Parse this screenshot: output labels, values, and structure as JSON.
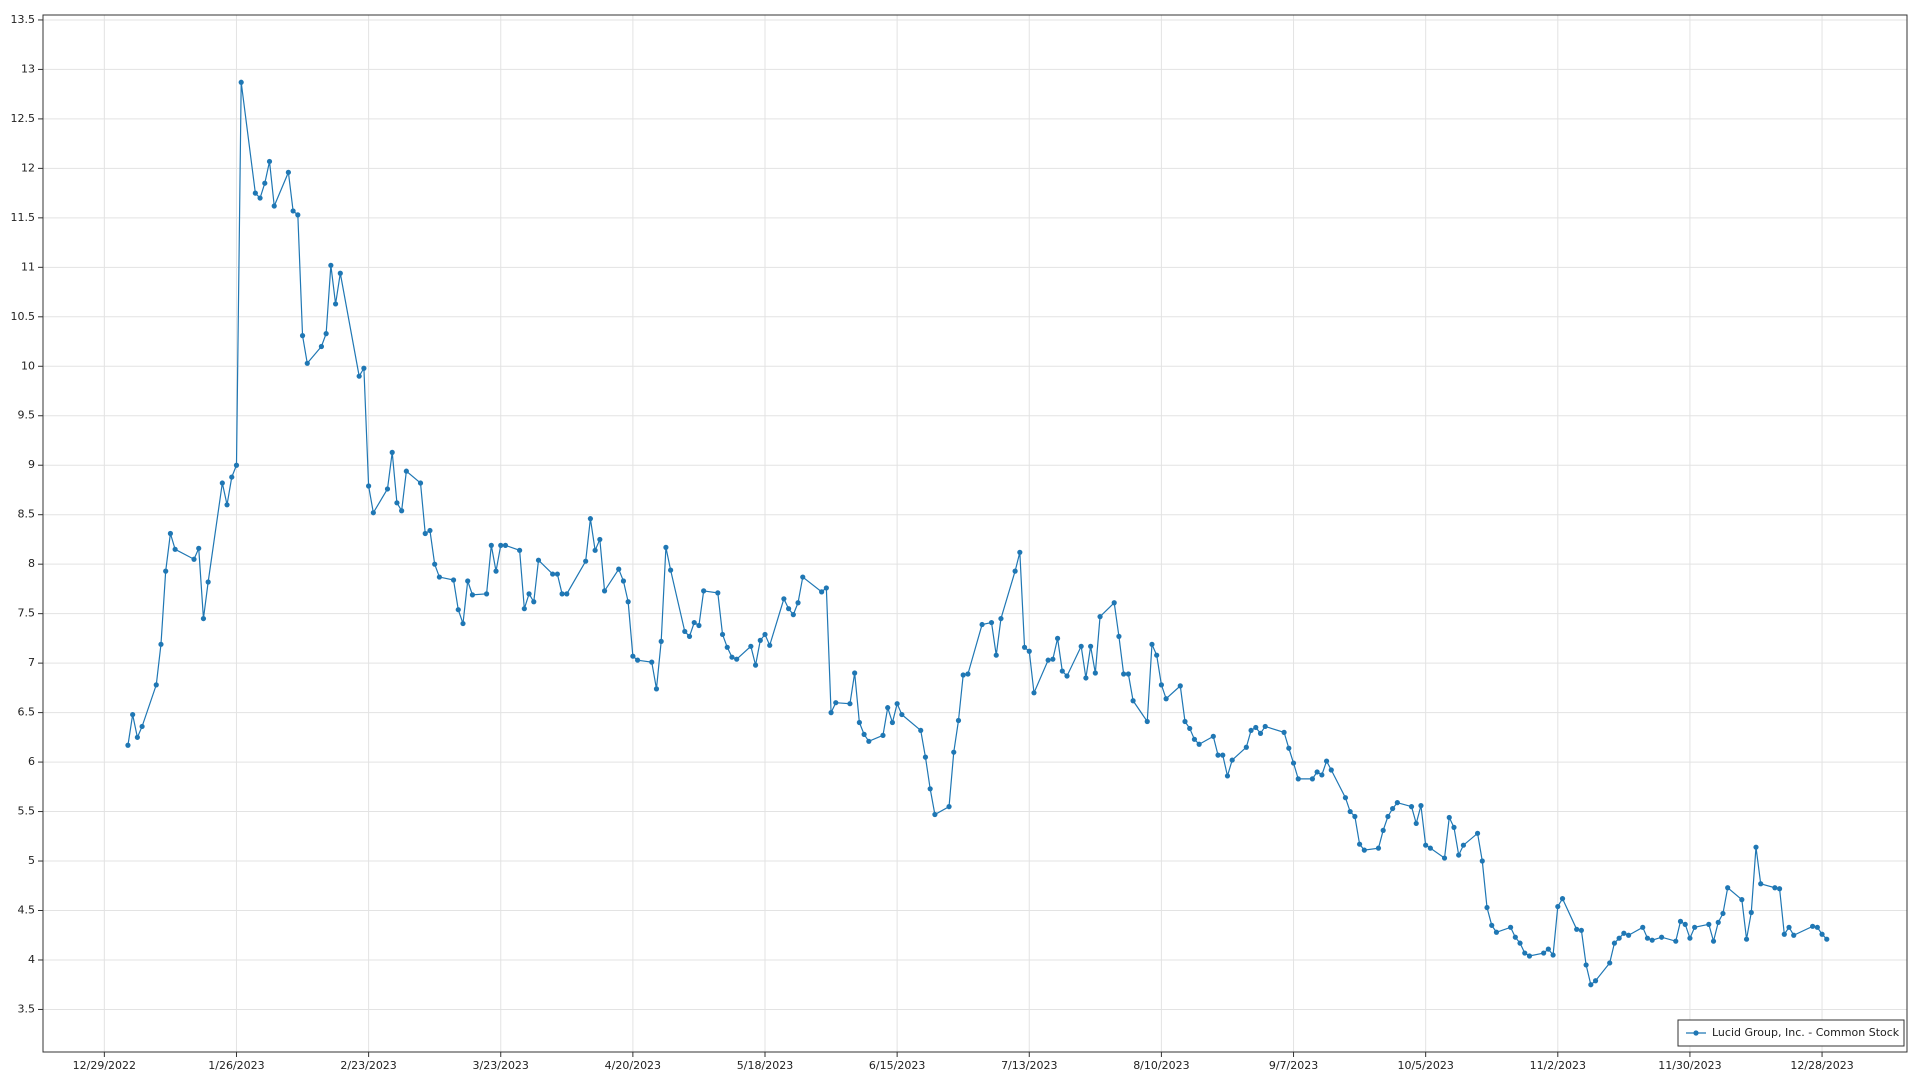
{
  "chart_data": {
    "type": "line",
    "grid": true,
    "legend": "lower right",
    "x_format": "date",
    "xlim": [
      "12/16/2022",
      "1/15/2024"
    ],
    "xticks": [
      "12/29/2022",
      "1/26/2023",
      "2/23/2023",
      "3/23/2023",
      "4/20/2023",
      "5/18/2023",
      "6/15/2023",
      "7/13/2023",
      "8/10/2023",
      "9/7/2023",
      "10/5/2023",
      "11/2/2023",
      "11/30/2023",
      "12/28/2023"
    ],
    "ylim": [
      3.07,
      13.55
    ],
    "yticks": [
      3.5,
      4,
      4.5,
      5,
      5.5,
      6,
      6.5,
      7,
      7.5,
      8,
      8.5,
      9,
      9.5,
      10,
      10.5,
      11,
      11.5,
      12,
      12.5,
      13,
      13.5
    ],
    "x": [
      "1/3/2023",
      "1/4/2023",
      "1/5/2023",
      "1/6/2023",
      "1/9/2023",
      "1/10/2023",
      "1/11/2023",
      "1/12/2023",
      "1/13/2023",
      "1/17/2023",
      "1/18/2023",
      "1/19/2023",
      "1/20/2023",
      "1/23/2023",
      "1/24/2023",
      "1/25/2023",
      "1/26/2023",
      "1/27/2023",
      "1/30/2023",
      "1/31/2023",
      "2/1/2023",
      "2/2/2023",
      "2/3/2023",
      "2/6/2023",
      "2/7/2023",
      "2/8/2023",
      "2/9/2023",
      "2/10/2023",
      "2/13/2023",
      "2/14/2023",
      "2/15/2023",
      "2/16/2023",
      "2/17/2023",
      "2/21/2023",
      "2/22/2023",
      "2/23/2023",
      "2/24/2023",
      "2/27/2023",
      "2/28/2023",
      "3/1/2023",
      "3/2/2023",
      "3/3/2023",
      "3/6/2023",
      "3/7/2023",
      "3/8/2023",
      "3/9/2023",
      "3/10/2023",
      "3/13/2023",
      "3/14/2023",
      "3/15/2023",
      "3/16/2023",
      "3/17/2023",
      "3/20/2023",
      "3/21/2023",
      "3/22/2023",
      "3/23/2023",
      "3/24/2023",
      "3/27/2023",
      "3/28/2023",
      "3/29/2023",
      "3/30/2023",
      "3/31/2023",
      "4/3/2023",
      "4/4/2023",
      "4/5/2023",
      "4/6/2023",
      "4/10/2023",
      "4/11/2023",
      "4/12/2023",
      "4/13/2023",
      "4/14/2023",
      "4/17/2023",
      "4/18/2023",
      "4/19/2023",
      "4/20/2023",
      "4/21/2023",
      "4/24/2023",
      "4/25/2023",
      "4/26/2023",
      "4/27/2023",
      "4/28/2023",
      "5/1/2023",
      "5/2/2023",
      "5/3/2023",
      "5/4/2023",
      "5/5/2023",
      "5/8/2023",
      "5/9/2023",
      "5/10/2023",
      "5/11/2023",
      "5/12/2023",
      "5/15/2023",
      "5/16/2023",
      "5/17/2023",
      "5/18/2023",
      "5/19/2023",
      "5/22/2023",
      "5/23/2023",
      "5/24/2023",
      "5/25/2023",
      "5/26/2023",
      "5/30/2023",
      "5/31/2023",
      "6/1/2023",
      "6/2/2023",
      "6/5/2023",
      "6/6/2023",
      "6/7/2023",
      "6/8/2023",
      "6/9/2023",
      "6/12/2023",
      "6/13/2023",
      "6/14/2023",
      "6/15/2023",
      "6/16/2023",
      "6/20/2023",
      "6/21/2023",
      "6/22/2023",
      "6/23/2023",
      "6/26/2023",
      "6/27/2023",
      "6/28/2023",
      "6/29/2023",
      "6/30/2023",
      "7/3/2023",
      "7/5/2023",
      "7/6/2023",
      "7/7/2023",
      "7/10/2023",
      "7/11/2023",
      "7/12/2023",
      "7/13/2023",
      "7/14/2023",
      "7/17/2023",
      "7/18/2023",
      "7/19/2023",
      "7/20/2023",
      "7/21/2023",
      "7/24/2023",
      "7/25/2023",
      "7/26/2023",
      "7/27/2023",
      "7/28/2023",
      "7/31/2023",
      "8/1/2023",
      "8/2/2023",
      "8/3/2023",
      "8/4/2023",
      "8/7/2023",
      "8/8/2023",
      "8/9/2023",
      "8/10/2023",
      "8/11/2023",
      "8/14/2023",
      "8/15/2023",
      "8/16/2023",
      "8/17/2023",
      "8/18/2023",
      "8/21/2023",
      "8/22/2023",
      "8/23/2023",
      "8/24/2023",
      "8/25/2023",
      "8/28/2023",
      "8/29/2023",
      "8/30/2023",
      "8/31/2023",
      "9/1/2023",
      "9/5/2023",
      "9/6/2023",
      "9/7/2023",
      "9/8/2023",
      "9/11/2023",
      "9/12/2023",
      "9/13/2023",
      "9/14/2023",
      "9/15/2023",
      "9/18/2023",
      "9/19/2023",
      "9/20/2023",
      "9/21/2023",
      "9/22/2023",
      "9/25/2023",
      "9/26/2023",
      "9/27/2023",
      "9/28/2023",
      "9/29/2023",
      "10/2/2023",
      "10/3/2023",
      "10/4/2023",
      "10/5/2023",
      "10/6/2023",
      "10/9/2023",
      "10/10/2023",
      "10/11/2023",
      "10/12/2023",
      "10/13/2023",
      "10/16/2023",
      "10/17/2023",
      "10/18/2023",
      "10/19/2023",
      "10/20/2023",
      "10/23/2023",
      "10/24/2023",
      "10/25/2023",
      "10/26/2023",
      "10/27/2023",
      "10/30/2023",
      "10/31/2023",
      "11/1/2023",
      "11/2/2023",
      "11/3/2023",
      "11/6/2023",
      "11/7/2023",
      "11/8/2023",
      "11/9/2023",
      "11/10/2023",
      "11/13/2023",
      "11/14/2023",
      "11/15/2023",
      "11/16/2023",
      "11/17/2023",
      "11/20/2023",
      "11/21/2023",
      "11/22/2023",
      "11/24/2023",
      "11/27/2023",
      "11/28/2023",
      "11/29/2023",
      "11/30/2023",
      "12/1/2023",
      "12/4/2023",
      "12/5/2023",
      "12/6/2023",
      "12/7/2023",
      "12/8/2023",
      "12/11/2023",
      "12/12/2023",
      "12/13/2023",
      "12/14/2023",
      "12/15/2023",
      "12/18/2023",
      "12/19/2023",
      "12/20/2023",
      "12/21/2023",
      "12/22/2023",
      "12/26/2023",
      "12/27/2023",
      "12/28/2023",
      "12/29/2023"
    ],
    "series": [
      {
        "name": "Lucid Group, Inc. - Common Stock",
        "color": "#1f77b4",
        "values": [
          6.17,
          6.48,
          6.25,
          6.36,
          6.78,
          7.19,
          7.93,
          8.31,
          8.15,
          8.05,
          8.16,
          7.45,
          7.82,
          8.82,
          8.6,
          8.88,
          9.0,
          12.87,
          11.75,
          11.7,
          11.85,
          12.07,
          11.62,
          11.96,
          11.57,
          11.53,
          10.31,
          10.03,
          10.2,
          10.33,
          11.02,
          10.63,
          10.94,
          9.9,
          9.98,
          8.79,
          8.52,
          8.76,
          9.13,
          8.62,
          8.54,
          8.94,
          8.82,
          8.31,
          8.34,
          8.0,
          7.87,
          7.84,
          7.54,
          7.4,
          7.83,
          7.69,
          7.7,
          8.19,
          7.93,
          8.19,
          8.19,
          8.14,
          7.55,
          7.7,
          7.62,
          8.04,
          7.9,
          7.9,
          7.7,
          7.7,
          8.03,
          8.46,
          8.14,
          8.25,
          7.73,
          7.95,
          7.83,
          7.62,
          7.07,
          7.03,
          7.01,
          6.74,
          7.22,
          8.17,
          7.94,
          7.32,
          7.27,
          7.41,
          7.38,
          7.73,
          7.71,
          7.29,
          7.16,
          7.06,
          7.04,
          7.17,
          6.98,
          7.23,
          7.29,
          7.18,
          7.65,
          7.55,
          7.49,
          7.61,
          7.87,
          7.72,
          7.76,
          6.5,
          6.6,
          6.59,
          6.9,
          6.4,
          6.28,
          6.21,
          6.27,
          6.55,
          6.4,
          6.59,
          6.48,
          6.32,
          6.05,
          5.73,
          5.47,
          5.55,
          6.1,
          6.42,
          6.88,
          6.89,
          7.39,
          7.41,
          7.08,
          7.45,
          7.93,
          8.12,
          7.16,
          7.12,
          6.7,
          7.03,
          7.04,
          7.25,
          6.92,
          6.87,
          7.17,
          6.85,
          7.17,
          6.9,
          7.47,
          7.61,
          7.27,
          6.89,
          6.89,
          6.62,
          6.41,
          7.19,
          7.08,
          6.78,
          6.64,
          6.77,
          6.41,
          6.34,
          6.23,
          6.18,
          6.26,
          6.07,
          6.07,
          5.86,
          6.02,
          6.15,
          6.32,
          6.35,
          6.29,
          6.36,
          6.3,
          6.14,
          5.99,
          5.83,
          5.83,
          5.9,
          5.87,
          6.01,
          5.92,
          5.64,
          5.5,
          5.45,
          5.17,
          5.11,
          5.13,
          5.31,
          5.45,
          5.53,
          5.59,
          5.55,
          5.38,
          5.56,
          5.16,
          5.13,
          5.03,
          5.44,
          5.34,
          5.06,
          5.16,
          5.28,
          5.0,
          4.53,
          4.35,
          4.28,
          4.33,
          4.23,
          4.17,
          4.07,
          4.04,
          4.07,
          4.11,
          4.05,
          4.54,
          4.62,
          4.31,
          4.3,
          3.95,
          3.75,
          3.79,
          3.97,
          4.17,
          4.22,
          4.27,
          4.25,
          4.33,
          4.22,
          4.2,
          4.23,
          4.19,
          4.39,
          4.36,
          4.22,
          4.33,
          4.36,
          4.19,
          4.38,
          4.47,
          4.73,
          4.61,
          4.21,
          4.48,
          5.14,
          4.77,
          4.73,
          4.72,
          4.26,
          4.33,
          4.25,
          4.34,
          4.33,
          4.26,
          4.21
        ]
      }
    ]
  }
}
